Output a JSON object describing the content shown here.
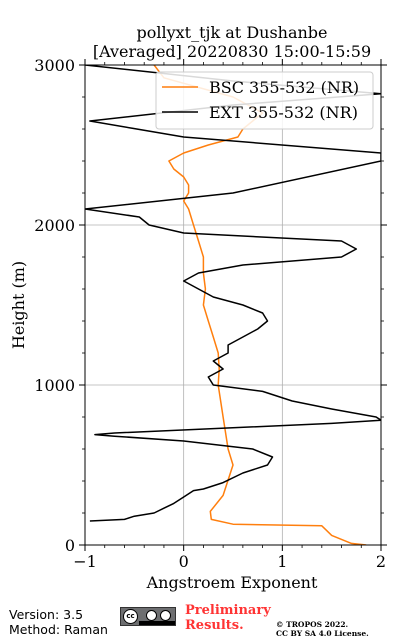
{
  "chart_data": {
    "type": "line",
    "title": "pollyxt_tjk at Dushanbe",
    "subtitle": "[Averaged] 20220830 15:00-15:59",
    "xlabel": "Angstroem Exponent",
    "ylabel": "Height (m)",
    "xlim": [
      -1,
      2
    ],
    "ylim": [
      0,
      3000
    ],
    "xticks": [
      -1,
      0,
      1,
      2
    ],
    "yticks": [
      0,
      1000,
      2000,
      3000
    ],
    "grid": true,
    "legend_position": "top-right",
    "series": [
      {
        "name": "BSC 355-532 (NR)",
        "color": "#ff7f0e",
        "x": [
          1.85,
          1.7,
          1.5,
          1.4,
          0.5,
          0.28,
          0.27,
          0.4,
          0.5,
          0.45,
          0.4,
          0.35,
          0.36,
          0.35,
          0.3,
          0.25,
          0.2,
          0.22,
          0.2,
          0.2,
          0.15,
          0.1,
          0.05,
          0.0,
          0.05,
          0.05,
          0.0,
          -0.1,
          -0.15,
          0.0,
          0.25,
          0.55,
          0.6,
          0.7,
          0.8,
          0.5,
          -0.2,
          -0.3
        ],
        "y": [
          0,
          10,
          60,
          120,
          130,
          160,
          210,
          310,
          500,
          600,
          800,
          1000,
          1100,
          1200,
          1300,
          1400,
          1500,
          1600,
          1700,
          1800,
          1900,
          2000,
          2100,
          2150,
          2200,
          2250,
          2300,
          2350,
          2400,
          2450,
          2500,
          2550,
          2600,
          2650,
          2700,
          2800,
          2920,
          3000
        ]
      },
      {
        "name": "EXT 355-532 (NR)",
        "color": "#000000",
        "x": [
          -0.95,
          -0.6,
          -0.5,
          -0.3,
          -0.2,
          -0.1,
          0.0,
          0.1,
          0.2,
          0.4,
          0.6,
          0.85,
          0.9,
          0.7,
          0.0,
          -0.7,
          -0.9,
          -0.7,
          1.5,
          2.0,
          1.95,
          1.5,
          1.1,
          0.8,
          0.3,
          0.25,
          0.4,
          0.3,
          0.45,
          0.45,
          0.6,
          0.75,
          0.85,
          0.8,
          0.6,
          0.3,
          0.15,
          0.0,
          0.15,
          0.6,
          1.6,
          1.75,
          1.6,
          0.0,
          -0.35,
          -0.45,
          -1.0,
          0.5,
          2.0,
          2.0,
          0.0,
          -0.95,
          0.5,
          2.0,
          0.5,
          -1.0
        ],
        "y": [
          150,
          160,
          180,
          200,
          230,
          260,
          300,
          340,
          350,
          390,
          450,
          500,
          550,
          600,
          650,
          680,
          690,
          700,
          760,
          780,
          800,
          850,
          900,
          960,
          1000,
          1050,
          1100,
          1150,
          1200,
          1250,
          1300,
          1350,
          1400,
          1450,
          1500,
          1550,
          1600,
          1650,
          1700,
          1750,
          1800,
          1850,
          1900,
          1950,
          2000,
          2050,
          2100,
          2200,
          2400,
          2450,
          2550,
          2650,
          2750,
          2820,
          2900,
          3000
        ]
      }
    ]
  },
  "footer": {
    "version": "Version: 3.5",
    "method": "Method: Raman",
    "preliminary_line1": "Preliminary",
    "preliminary_line2": "Results.",
    "copyright_line1": "© TROPOS 2022.",
    "copyright_line2": "CC BY SA 4.0 License."
  }
}
